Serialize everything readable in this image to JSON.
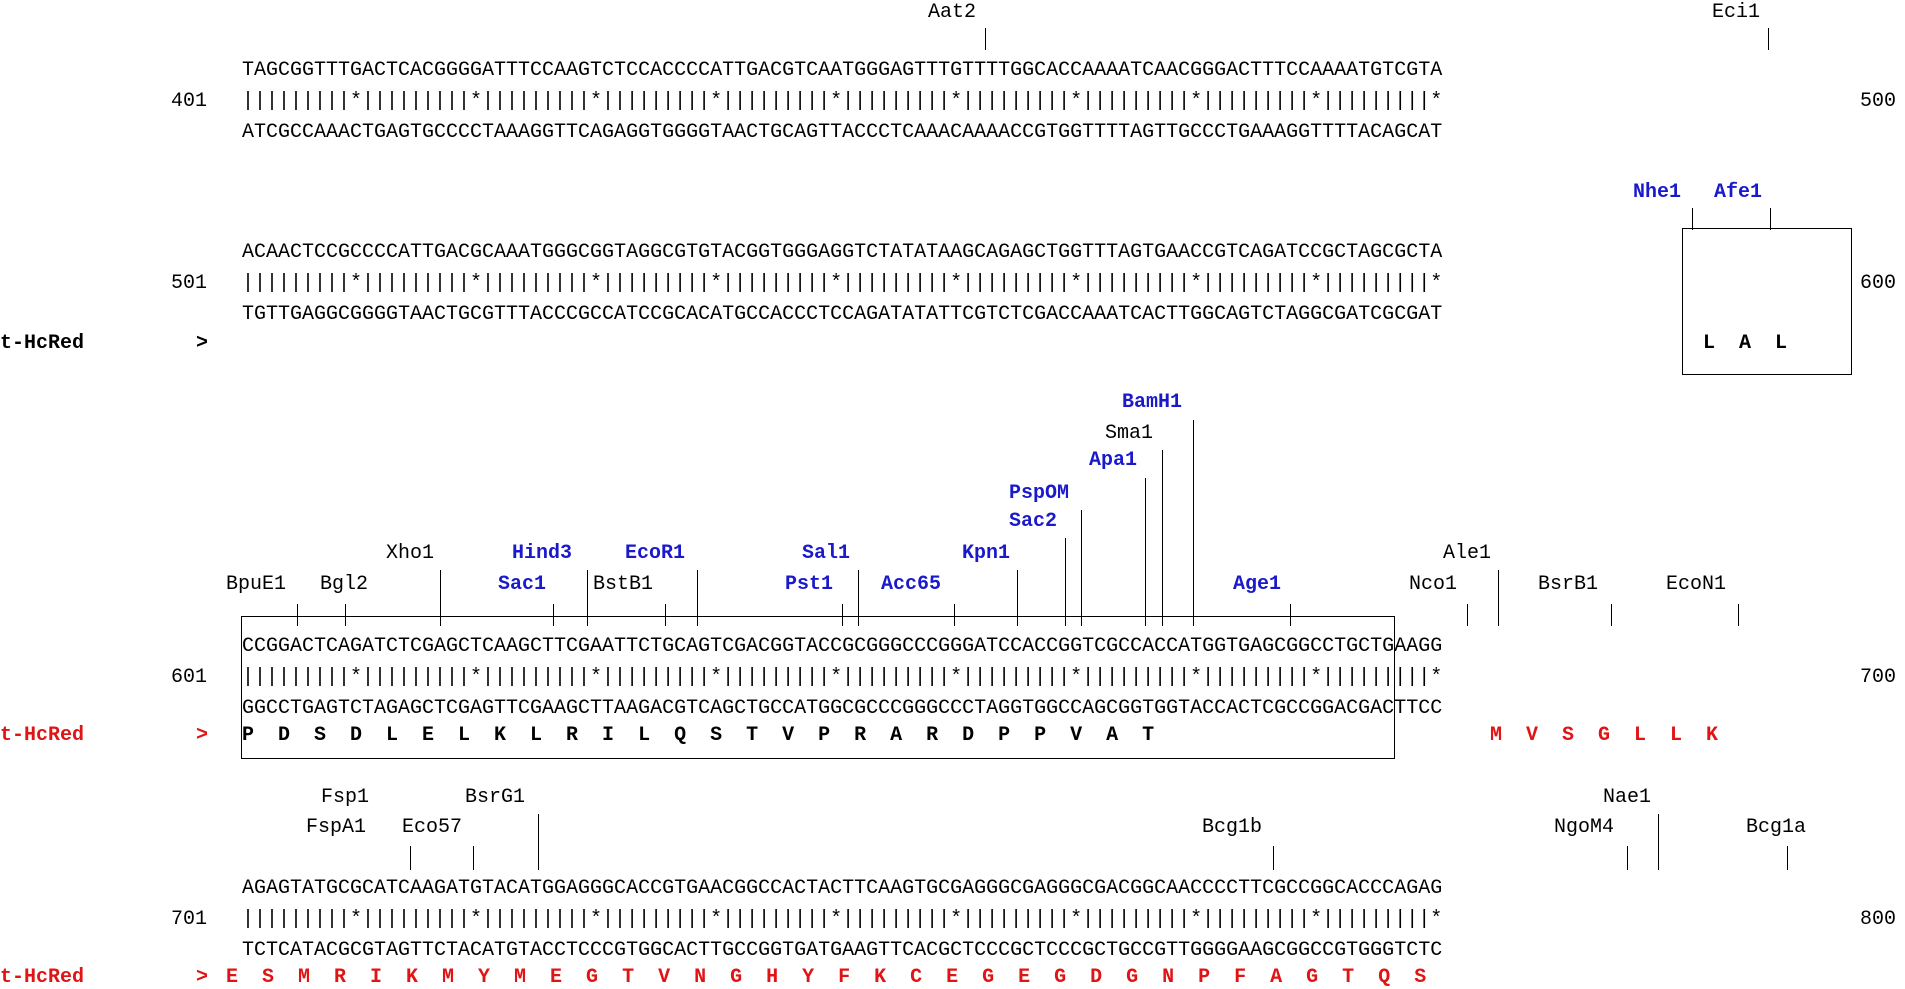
{
  "colors": {
    "unique_enzyme": "#1a1acc",
    "orf": "#e01414",
    "text": "#000000"
  },
  "blocks": [
    {
      "start": "401",
      "end": "500",
      "top": "TAGCGGTTTGACTCACGGGGATTTCCAAGTCTCCACCCCATTGACGTCAATGGGAGTTTGTTTTGGCACCAAAATCAACGGGACTTTCCAAAATGTCGTA",
      "match": "|||||||||*|||||||||*|||||||||*|||||||||*|||||||||*|||||||||*|||||||||*|||||||||*|||||||||*|||||||||*",
      "bottom": "ATCGCCAAACTGAGTGCCCCTAAAGGTTCAGAGGTGGGGTAACTGCAGTTACCCTCAAACAAAACCGTGGTTTTAGTTGCCCTGAAAGGTTTTACAGCAT",
      "enzymes": [
        {
          "name": "Aat2",
          "unique": false
        },
        {
          "name": "Eci1",
          "unique": false
        }
      ]
    },
    {
      "start": "501",
      "end": "600",
      "top": "ACAACTCCGCCCCATTGACGCAAATGGGCGGTAGGCGTGTACGGTGGGAGGTCTATATAAGCAGAGCTGGTTTAGTGAACCGTCAGATCCGCTAGCGCTA",
      "match": "|||||||||*|||||||||*|||||||||*|||||||||*|||||||||*|||||||||*|||||||||*|||||||||*|||||||||*|||||||||*",
      "bottom": "TGTTGAGGCGGGGTAACTGCGTTTACCCGCCATCCGCACATGCCACCCTCCAGATATATTCGTCTCGACCAAATCACTTGGCAGTCTAGGCGATCGCGAT",
      "label": "t-HcRed",
      "arrow": ">",
      "translation": "L  A  L",
      "enzymes": [
        {
          "name": "Nhe1",
          "unique": true
        },
        {
          "name": "Afe1",
          "unique": true
        }
      ]
    },
    {
      "start": "601",
      "end": "700",
      "top": "CCGGACTCAGATCTCGAGCTCAAGCTTCGAATTCTGCAGTCGACGGTACCGCGGGCCCGGGATCCACCGGTCGCCACCATGGTGAGCGGCCTGCTGAAGG",
      "match": "|||||||||*|||||||||*|||||||||*|||||||||*|||||||||*|||||||||*|||||||||*|||||||||*|||||||||*|||||||||*",
      "bottom": "GGCCTGAGTCTAGAGCTCGAGTTCGAAGCTTAAGACGTCAGCTGCCATGGCGCCCGGGCCCTAGGTGGCCAGCGGTGGTACCACTCGCCGGACGACTTCC",
      "label": "t-HcRed",
      "arrow": ">",
      "translation_black": "P  D  S  D  L  E  L  K  L  R  I  L  Q  S  T  V  P  R  A  R  D  P  P  V  A  T",
      "translation_red": "M  V  S  G  L  L  K",
      "enzymes": [
        {
          "name": "BpuE1",
          "unique": false
        },
        {
          "name": "Bgl2",
          "unique": false
        },
        {
          "name": "Xho1",
          "unique": false
        },
        {
          "name": "Hind3",
          "unique": true
        },
        {
          "name": "Sac1",
          "unique": true
        },
        {
          "name": "BstB1",
          "unique": false
        },
        {
          "name": "EcoR1",
          "unique": true
        },
        {
          "name": "Sal1",
          "unique": true
        },
        {
          "name": "Pst1",
          "unique": true
        },
        {
          "name": "Acc65",
          "unique": true
        },
        {
          "name": "Kpn1",
          "unique": true
        },
        {
          "name": "PspOM",
          "unique": true
        },
        {
          "name": "Sac2",
          "unique": true
        },
        {
          "name": "Apa1",
          "unique": true
        },
        {
          "name": "Sma1",
          "unique": false
        },
        {
          "name": "BamH1",
          "unique": true
        },
        {
          "name": "Age1",
          "unique": true
        },
        {
          "name": "Nco1",
          "unique": false
        },
        {
          "name": "Ale1",
          "unique": false
        },
        {
          "name": "BsrB1",
          "unique": false
        },
        {
          "name": "EcoN1",
          "unique": false
        }
      ]
    },
    {
      "start": "701",
      "end": "800",
      "top": "AGAGTATGCGCATCAAGATGTACATGGAGGGCACCGTGAACGGCCACTACTTCAAGTGCGAGGGCGAGGGCGACGGCAACCCCTTCGCCGGCACCCAGAG",
      "match": "|||||||||*|||||||||*|||||||||*|||||||||*|||||||||*|||||||||*|||||||||*|||||||||*|||||||||*|||||||||*",
      "bottom": "TCTCATACGCGTAGTTCTACATGTACCTCCCGTGGCACTTGCCGGTGATGAAGTTCACGCTCCCGCTCCCGCTGCCGTTGGGGAAGCGGCCGTGGGTCTC",
      "label": "t-HcRed",
      "arrow": ">",
      "translation_red": "E  S  M  R  I  K  M  Y  M  E  G  T  V  N  G  H  Y  F  K  C  E  G  E  G  D  G  N  P  F  A  G  T  Q  S",
      "enzymes": [
        {
          "name": "Fsp1",
          "unique": false
        },
        {
          "name": "FspA1",
          "unique": false
        },
        {
          "name": "Eco57",
          "unique": false
        },
        {
          "name": "BsrG1",
          "unique": false
        },
        {
          "name": "Bcg1b",
          "unique": false
        },
        {
          "name": "Nae1",
          "unique": false
        },
        {
          "name": "NgoM4",
          "unique": false
        },
        {
          "name": "Bcg1a",
          "unique": false
        }
      ]
    }
  ]
}
